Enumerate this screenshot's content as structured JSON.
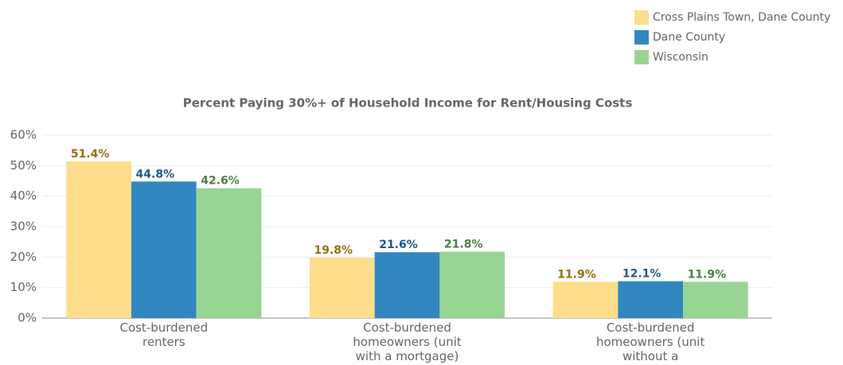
{
  "chart_data": {
    "type": "bar",
    "title": "Percent Paying 30%+ of Household Income for Rent/Housing Costs",
    "categories": [
      "Cost-burdened renters",
      "Cost-burdened homeowners (unit with a mortgage)",
      "Cost-burdened homeowners (unit without a mortgage)"
    ],
    "series": [
      {
        "name": "Cross Plains Town, Dane County",
        "color": "#fedd8a",
        "label_color": "#94700c",
        "values": [
          51.4,
          19.8,
          11.9
        ],
        "value_labels": [
          "51.4%",
          "19.8%",
          "11.9%"
        ]
      },
      {
        "name": "Dane County",
        "color": "#3287c0",
        "label_color": "#1f5a88",
        "values": [
          44.8,
          21.6,
          12.1
        ],
        "value_labels": [
          "44.8%",
          "21.6%",
          "12.1%"
        ]
      },
      {
        "name": "Wisconsin",
        "color": "#98d595",
        "label_color": "#4b7f3f",
        "values": [
          42.6,
          21.8,
          11.9
        ],
        "value_labels": [
          "42.6%",
          "21.8%",
          "11.9%"
        ]
      }
    ],
    "ylim": [
      0,
      60
    ],
    "yticks": [
      {
        "value": 0,
        "label": "0%"
      },
      {
        "value": 10,
        "label": "10%"
      },
      {
        "value": 20,
        "label": "20%"
      },
      {
        "value": 30,
        "label": "30%"
      },
      {
        "value": 40,
        "label": "40%"
      },
      {
        "value": 50,
        "label": "50%"
      },
      {
        "value": 60,
        "label": "60%"
      }
    ],
    "grid": true,
    "legend": "top-right"
  }
}
